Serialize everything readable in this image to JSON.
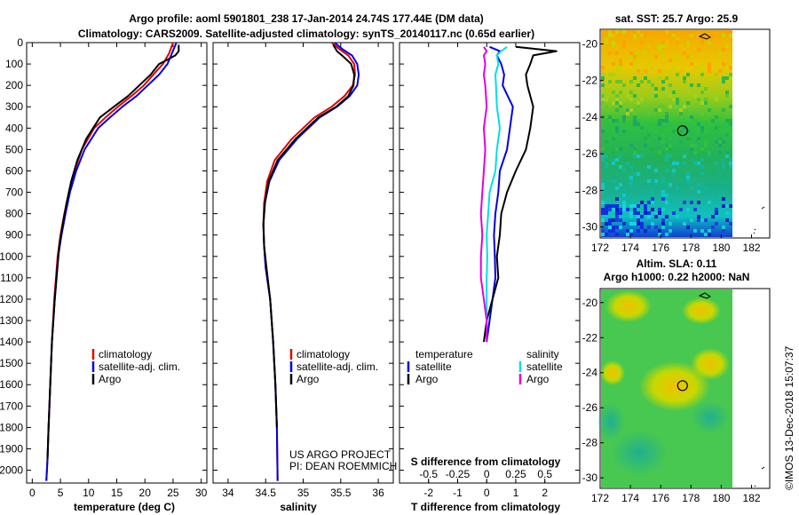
{
  "header": {
    "title_line1": "Argo profile: aoml 5901801_238 17-Jan-2014 24.74S 177.44E (DM data)",
    "title_line2": "Climatology: CARS2009. Satellite-adjusted climatology: synTS_20140117.nc (0.65d earlier)"
  },
  "credit": {
    "line1": "US ARGO PROJECT",
    "line2": "PI: DEAN ROEMMICH"
  },
  "timestamp": "©IMOS 13-Dec-2018 15:07:37",
  "colors": {
    "climatology": "#e00000",
    "satellite": "#0000e0",
    "argo": "#000000",
    "sal_satellite": "#00e0e0",
    "sal_argo": "#e000e0"
  },
  "chart_data": [
    {
      "type": "line",
      "xlabel": "temperature (deg C)",
      "ylabel": "",
      "xlim": [
        -1,
        31
      ],
      "ylim": [
        2060,
        0
      ],
      "xticks": [
        0,
        5,
        10,
        15,
        20,
        25,
        30
      ],
      "yticks": [
        0,
        100,
        200,
        300,
        400,
        500,
        600,
        700,
        800,
        900,
        1000,
        1100,
        1200,
        1300,
        1400,
        1500,
        1600,
        1700,
        1800,
        1900,
        2000
      ],
      "legend_position": "bottom-center",
      "series": [
        {
          "name": "climatology",
          "color": "#e00000",
          "x": [
            25.0,
            24.3,
            23.2,
            21.5,
            19.8,
            17.6,
            15.2,
            13.0,
            11.0,
            8.8,
            7.5,
            6.5,
            5.7,
            5.0,
            4.5,
            3.9,
            3.5,
            3.2,
            2.9,
            2.7,
            2.5
          ],
          "y": [
            0,
            50,
            100,
            150,
            200,
            250,
            300,
            350,
            400,
            500,
            600,
            700,
            800,
            900,
            1000,
            1200,
            1400,
            1600,
            1800,
            1950,
            2050
          ]
        },
        {
          "name": "satellite-adj. clim.",
          "color": "#0000e0",
          "x": [
            25.6,
            24.8,
            24.0,
            22.5,
            20.5,
            18.5,
            16.0,
            13.8,
            11.7,
            9.3,
            7.8,
            6.7,
            5.9,
            5.2,
            4.6,
            4.0,
            3.5,
            3.2,
            2.9,
            2.7,
            2.5
          ],
          "y": [
            0,
            50,
            100,
            150,
            200,
            250,
            300,
            350,
            400,
            500,
            600,
            700,
            800,
            900,
            1000,
            1200,
            1400,
            1600,
            1800,
            1950,
            2050
          ]
        },
        {
          "name": "Argo",
          "color": "#000000",
          "x": [
            26.0,
            26.0,
            25.4,
            24.0,
            22.5,
            21.0,
            19.0,
            17.0,
            14.5,
            12.0,
            9.6,
            8.0,
            6.9,
            6.1,
            5.4,
            4.8,
            4.0,
            3.5,
            3.2,
            2.9,
            2.7
          ],
          "y": [
            10,
            40,
            60,
            80,
            100,
            150,
            200,
            250,
            300,
            350,
            450,
            550,
            650,
            750,
            850,
            950,
            1200,
            1400,
            1600,
            1800,
            1950
          ]
        }
      ]
    },
    {
      "type": "line",
      "xlabel": "salinity",
      "ylabel": "",
      "xlim": [
        33.8,
        36.2
      ],
      "ylim": [
        2060,
        0
      ],
      "xticks": [
        34,
        34.5,
        35,
        35.5,
        36
      ],
      "legend_position": "bottom-center",
      "series": [
        {
          "name": "climatology",
          "color": "#e00000",
          "x": [
            35.38,
            35.48,
            35.6,
            35.68,
            35.69,
            35.66,
            35.55,
            35.38,
            35.15,
            34.85,
            34.62,
            34.52,
            34.48,
            34.47,
            34.48,
            34.5,
            34.56,
            34.6,
            34.63,
            34.65,
            34.66
          ],
          "y": [
            0,
            30,
            60,
            100,
            150,
            200,
            250,
            300,
            350,
            450,
            550,
            650,
            750,
            850,
            950,
            1050,
            1200,
            1400,
            1600,
            1800,
            2050
          ]
        },
        {
          "name": "satellite-adj. clim.",
          "color": "#0000e0",
          "x": [
            35.42,
            35.52,
            35.65,
            35.72,
            35.74,
            35.72,
            35.62,
            35.45,
            35.22,
            34.92,
            34.68,
            34.55,
            34.49,
            34.47,
            34.48,
            34.5,
            34.56,
            34.6,
            34.63,
            34.65,
            34.66
          ],
          "y": [
            0,
            30,
            60,
            100,
            150,
            200,
            250,
            300,
            350,
            450,
            550,
            650,
            750,
            850,
            950,
            1050,
            1200,
            1400,
            1600,
            1800,
            2050
          ]
        },
        {
          "name": "Argo",
          "color": "#000000",
          "x": [
            35.4,
            35.45,
            35.55,
            35.64,
            35.68,
            35.67,
            35.6,
            35.44,
            35.2,
            34.9,
            34.66,
            34.54,
            34.49,
            34.47,
            34.48,
            34.51,
            34.56,
            34.6,
            34.63,
            34.65
          ],
          "y": [
            10,
            40,
            70,
            100,
            150,
            200,
            250,
            300,
            350,
            450,
            550,
            650,
            750,
            850,
            950,
            1050,
            1200,
            1400,
            1600,
            1800
          ]
        }
      ]
    },
    {
      "type": "line",
      "xlabel": "T difference from climatology",
      "xlabel2": "S difference from climatology",
      "ylabel": "",
      "xlim": [
        -3,
        3.2
      ],
      "ylim": [
        2060,
        0
      ],
      "xticks": [
        -2,
        -1,
        0,
        1,
        2
      ],
      "xticks2": [
        -0.5,
        -0.25,
        0,
        0.25,
        0.5
      ],
      "xticks2_labels": [
        "-0.5",
        "-0.25",
        "0",
        "0.25",
        "0.5"
      ],
      "legend_left_title": "temperature",
      "legend_right_title": "salinity",
      "legend_position": "bottom-center",
      "series": [
        {
          "name": "satellite",
          "group": "temperature",
          "color": "#0000e0",
          "x": [
            0.1,
            0.45,
            0.35,
            0.5,
            0.6,
            0.55,
            0.9,
            0.8,
            0.7,
            0.45,
            0.4,
            0.3,
            0.25,
            0.28,
            0.3,
            0.2,
            0.1,
            0.0
          ],
          "y": [
            20,
            40,
            60,
            100,
            150,
            200,
            300,
            400,
            500,
            600,
            700,
            800,
            900,
            1000,
            1100,
            1200,
            1300,
            1400
          ]
        },
        {
          "name": "Argo",
          "group": "temperature",
          "color": "#000000",
          "x": [
            1.0,
            2.4,
            1.6,
            1.5,
            1.35,
            1.4,
            1.6,
            1.5,
            1.35,
            1.0,
            0.7,
            0.5,
            0.45,
            0.35,
            0.4,
            0.2,
            0.0,
            -0.1
          ],
          "y": [
            20,
            40,
            60,
            100,
            150,
            200,
            300,
            400,
            500,
            600,
            700,
            800,
            900,
            1000,
            1100,
            1200,
            1300,
            1400
          ]
        },
        {
          "name": "satellite",
          "group": "salinity",
          "color": "#00e0e0",
          "x": [
            0.7,
            0.5,
            0.35,
            0.4,
            0.3,
            0.32,
            0.35,
            0.45,
            0.35,
            0.3,
            0.1,
            0.05,
            0.0,
            0.02,
            0.0,
            0.0,
            0.0,
            0.0
          ],
          "y": [
            20,
            40,
            60,
            100,
            150,
            200,
            300,
            400,
            500,
            600,
            700,
            800,
            900,
            1000,
            1100,
            1200,
            1300,
            1400
          ]
        },
        {
          "name": "Argo",
          "group": "salinity",
          "color": "#e000e0",
          "x": [
            -0.1,
            0.0,
            -0.1,
            -0.05,
            -0.1,
            -0.05,
            0.0,
            -0.1,
            -0.05,
            -0.1,
            -0.15,
            -0.2,
            -0.15,
            -0.2,
            -0.2,
            -0.1,
            0.0,
            0.0
          ],
          "y": [
            20,
            40,
            60,
            100,
            150,
            200,
            300,
            400,
            500,
            600,
            700,
            800,
            900,
            1000,
            1100,
            1200,
            1300,
            1400
          ]
        }
      ]
    },
    {
      "type": "heatmap",
      "title": "sat. SST: 25.7 Argo: 25.9",
      "xticks": [
        172,
        174,
        176,
        178,
        180,
        182
      ],
      "yticks": [
        -20,
        -22,
        -24,
        -26,
        -28,
        -30
      ],
      "xlim": [
        172,
        183.2
      ],
      "ylim": [
        -30.6,
        -19.2
      ],
      "marker": {
        "lon": 177.44,
        "lat": -24.74
      }
    },
    {
      "type": "heatmap",
      "title": "Altim. SLA: 0.11",
      "subtitle": "Argo h1000: 0.22 h2000: NaN",
      "xticks": [
        172,
        174,
        176,
        178,
        180,
        182
      ],
      "yticks": [
        -20,
        -22,
        -24,
        -26,
        -28,
        -30
      ],
      "xlim": [
        172,
        183.2
      ],
      "ylim": [
        -30.6,
        -19.2
      ],
      "marker": {
        "lon": 177.44,
        "lat": -24.74
      }
    }
  ]
}
